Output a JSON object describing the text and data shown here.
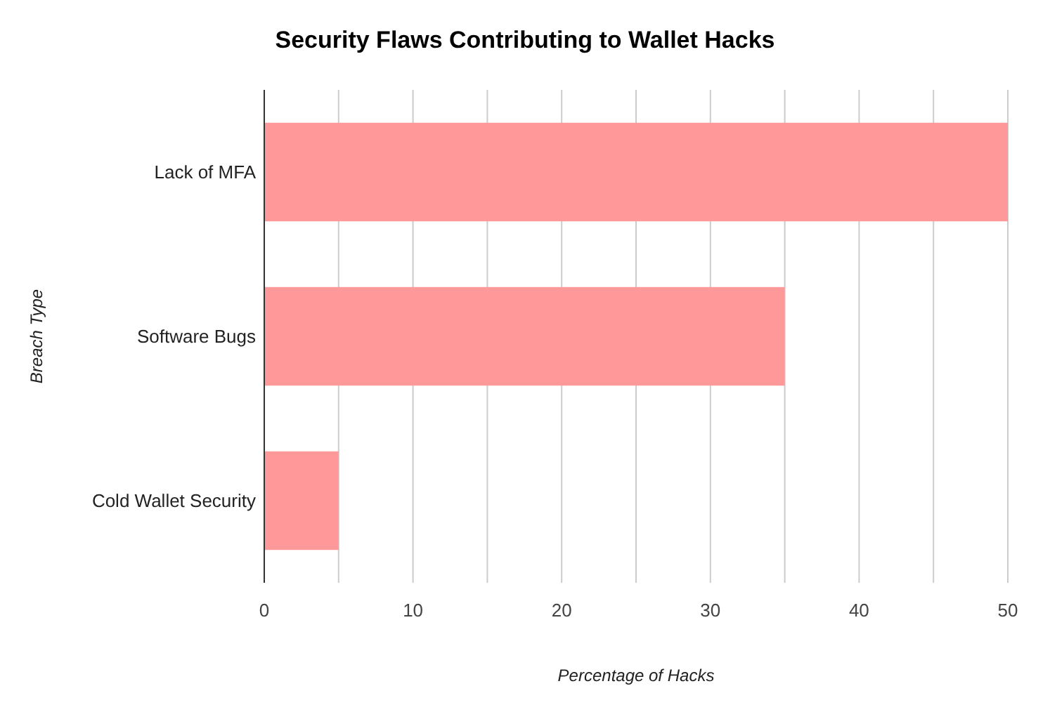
{
  "chart_data": {
    "type": "bar",
    "orientation": "horizontal",
    "title": "Security Flaws Contributing to Wallet Hacks",
    "xlabel": "Percentage of Hacks",
    "ylabel": "Breach Type",
    "categories": [
      "Lack of MFA",
      "Software Bugs",
      "Cold Wallet Security"
    ],
    "values": [
      50,
      35,
      5
    ],
    "color": "#ff9999",
    "xlim": [
      0,
      50
    ],
    "xticks": [
      0,
      {
        "value": 5,
        "label": null
      },
      10,
      {
        "value": 15,
        "label": null
      },
      20,
      {
        "value": 25,
        "label": null
      },
      30,
      {
        "value": 35,
        "label": null
      },
      40,
      {
        "value": 45,
        "label": null
      },
      50
    ],
    "grid": "x"
  }
}
